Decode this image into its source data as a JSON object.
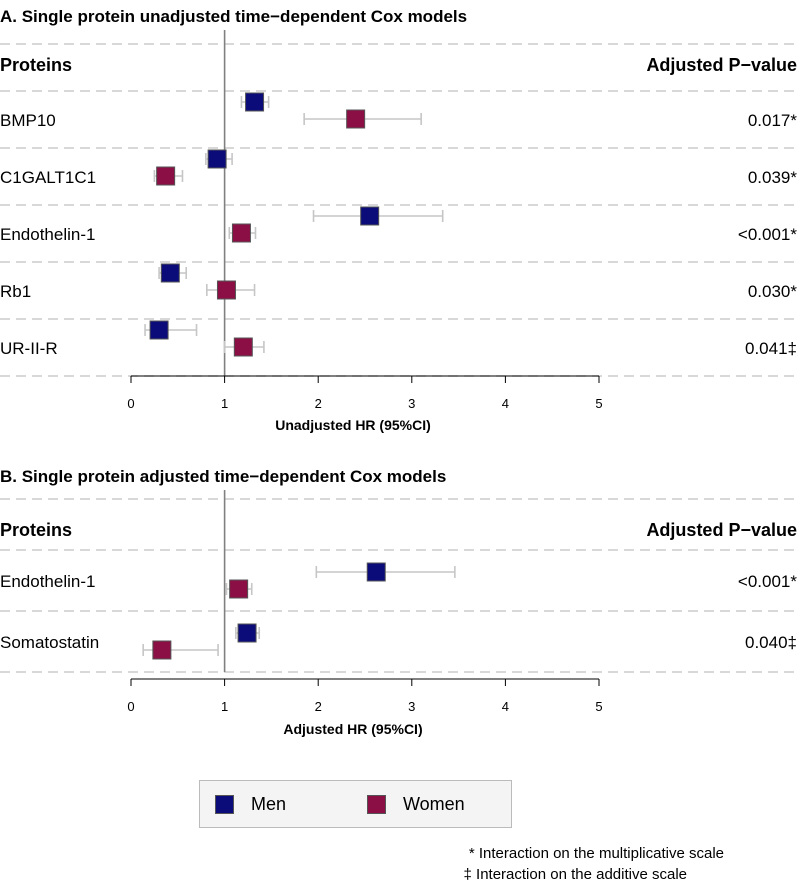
{
  "legend": {
    "men": "Men",
    "women": "Women"
  },
  "footnotes": {
    "star": "* Interaction on the multiplicative scale",
    "dagger": "‡ Interaction on the additive scale"
  },
  "colors": {
    "men": "#0b0b7a",
    "women": "#8b0f45",
    "ci": "#c6c6c6",
    "ref_line": "#808080",
    "separator": "#cccccc",
    "legend_border": "#bbbbbb",
    "legend_bg": "#f4f4f4"
  },
  "chart_data": [
    {
      "type": "forest",
      "title": "A. Single protein unadjusted time−dependent Cox models",
      "col_header_left": "Proteins",
      "col_header_right": "Adjusted P−value",
      "xlabel": "Unadjusted HR (95%CI)",
      "xlim": [
        0,
        5
      ],
      "xticks": [
        0,
        1,
        2,
        3,
        4,
        5
      ],
      "ref_value": 1,
      "series_names": [
        "Men",
        "Women"
      ],
      "rows": [
        {
          "protein": "BMP10",
          "p_value": "0.017*",
          "men": {
            "hr": 1.32,
            "lo": 1.18,
            "hi": 1.47
          },
          "women": {
            "hr": 2.4,
            "lo": 1.85,
            "hi": 3.1
          }
        },
        {
          "protein": "C1GALT1C1",
          "p_value": "0.039*",
          "men": {
            "hr": 0.92,
            "lo": 0.8,
            "hi": 1.08
          },
          "women": {
            "hr": 0.37,
            "lo": 0.25,
            "hi": 0.55
          }
        },
        {
          "protein": "Endothelin-1",
          "p_value": "<0.001*",
          "men": {
            "hr": 2.55,
            "lo": 1.95,
            "hi": 3.33
          },
          "women": {
            "hr": 1.18,
            "lo": 1.05,
            "hi": 1.33
          }
        },
        {
          "protein": "Rb1",
          "p_value": "0.030*",
          "men": {
            "hr": 0.42,
            "lo": 0.3,
            "hi": 0.59
          },
          "women": {
            "hr": 1.02,
            "lo": 0.81,
            "hi": 1.32
          }
        },
        {
          "protein": "UR-II-R",
          "p_value": "0.041‡",
          "men": {
            "hr": 0.3,
            "lo": 0.15,
            "hi": 0.7
          },
          "women": {
            "hr": 1.2,
            "lo": 1.0,
            "hi": 1.42
          }
        }
      ]
    },
    {
      "type": "forest",
      "title": "B. Single protein adjusted time−dependent Cox models",
      "col_header_left": "Proteins",
      "col_header_right": "Adjusted P−value",
      "xlabel": "Adjusted HR (95%CI)",
      "xlim": [
        0,
        5
      ],
      "xticks": [
        0,
        1,
        2,
        3,
        4,
        5
      ],
      "ref_value": 1,
      "series_names": [
        "Men",
        "Women"
      ],
      "rows": [
        {
          "protein": "Endothelin-1",
          "p_value": "<0.001*",
          "men": {
            "hr": 2.62,
            "lo": 1.98,
            "hi": 3.46
          },
          "women": {
            "hr": 1.15,
            "lo": 1.02,
            "hi": 1.29
          }
        },
        {
          "protein": "Somatostatin",
          "p_value": "0.040‡",
          "men": {
            "hr": 1.24,
            "lo": 1.12,
            "hi": 1.37
          },
          "women": {
            "hr": 0.33,
            "lo": 0.13,
            "hi": 0.93
          }
        }
      ]
    }
  ]
}
